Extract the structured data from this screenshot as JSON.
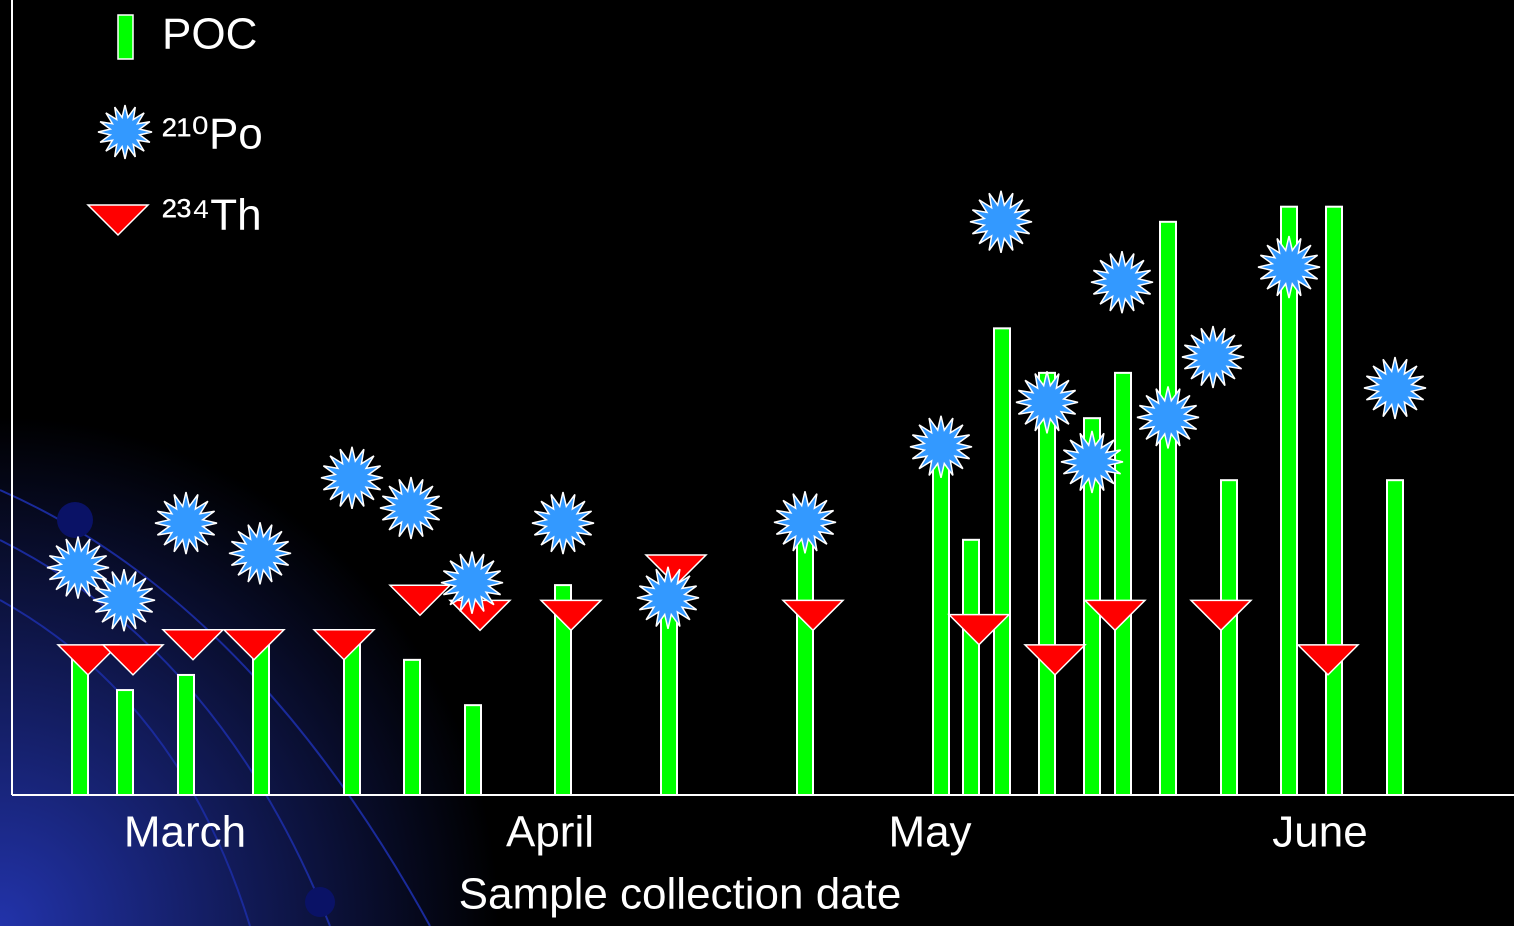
{
  "chart_data": {
    "type": "bar_markers",
    "x_label": "Sample collection date",
    "xlim": [
      0,
      1502
    ],
    "ylim": [
      0,
      100
    ],
    "xticks": [
      {
        "value": 173,
        "label": "March"
      },
      {
        "value": 538,
        "label": "April"
      },
      {
        "value": 918,
        "label": "May"
      },
      {
        "value": 1308,
        "label": "June"
      }
    ],
    "series": [
      {
        "name": "POC",
        "kind": "bar",
        "color": "#00ff00",
        "x": [
          68,
          113,
          174,
          249,
          340,
          400,
          461,
          551,
          657,
          793,
          929,
          959,
          990,
          1035,
          1080,
          1111,
          1156,
          1217,
          1277,
          1322,
          1383
        ],
        "values": [
          17.0,
          13.2,
          15.1,
          18.9,
          19.5,
          17.0,
          11.3,
          26.4,
          25.8,
          34.6,
          42.8,
          32.1,
          58.7,
          53.1,
          47.4,
          53.1,
          72.1,
          39.6,
          74.0,
          74.0,
          39.6
        ]
      },
      {
        "name": "²¹⁰Po",
        "kind": "star",
        "color": "#3399ff",
        "x": [
          66,
          112,
          174,
          248,
          340,
          399,
          460,
          551,
          656,
          793,
          929,
          989,
          1035,
          1080,
          1110,
          1156,
          1201,
          1277,
          1383
        ],
        "values": [
          28.6,
          24.5,
          34.2,
          30.4,
          39.9,
          36.1,
          26.7,
          34.2,
          24.8,
          34.3,
          43.8,
          72.1,
          49.4,
          41.9,
          64.5,
          47.5,
          55.1,
          66.4,
          51.2
        ]
      },
      {
        "name": "²³⁴Th",
        "kind": "triangle",
        "color": "#ff0000",
        "x": [
          76,
          121,
          181,
          242,
          332,
          408,
          468,
          559,
          664,
          801,
          967,
          1043,
          1103,
          1209,
          1316
        ],
        "values": [
          17.0,
          17.0,
          18.9,
          18.9,
          18.9,
          24.5,
          22.6,
          22.6,
          28.3,
          22.6,
          20.8,
          17.0,
          22.6,
          22.6,
          17.0
        ]
      }
    ]
  }
}
